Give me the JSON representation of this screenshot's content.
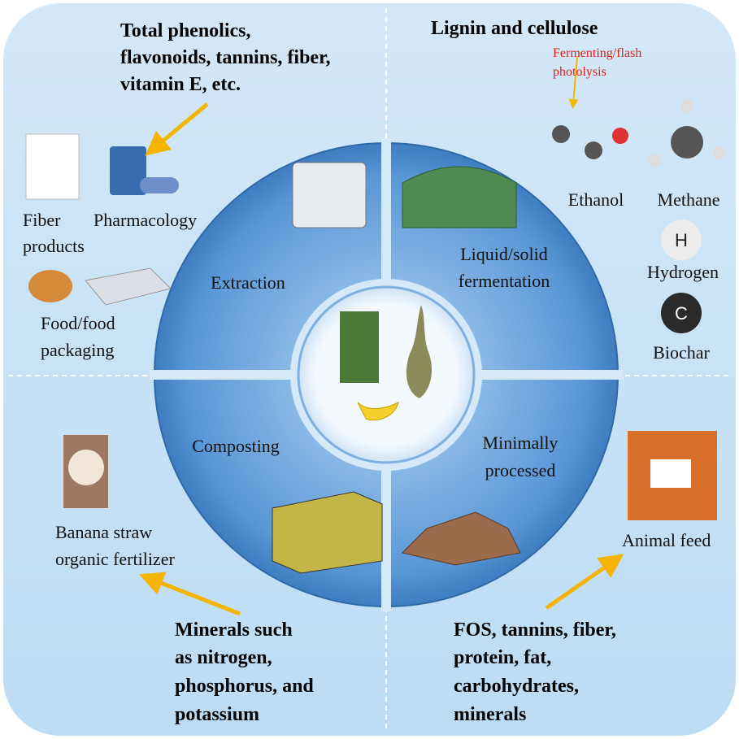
{
  "top_left": {
    "heading": [
      "Total phenolics,",
      "flavonoids, tannins, fiber,",
      "vitamin E, etc."
    ],
    "process": "Extraction",
    "fiber_products": [
      "Fiber",
      "products"
    ],
    "pharmacology": "Pharmacology",
    "food": [
      "Food/food",
      "packaging"
    ]
  },
  "top_right": {
    "heading": "Lignin and cellulose",
    "note": [
      "Fermenting/flash",
      "photolysis"
    ],
    "process": [
      "Liquid/solid",
      "fermentation"
    ],
    "ethanol": "Ethanol",
    "methane": "Methane",
    "hydrogen_icon": "H",
    "hydrogen": "Hydrogen",
    "biochar_icon": "C",
    "biochar": "Biochar"
  },
  "bottom_left": {
    "process": "Composting",
    "product": [
      "Banana straw",
      "organic fertilizer"
    ],
    "heading": [
      "Minerals such",
      "as nitrogen,",
      "phosphorus, and",
      "potassium"
    ]
  },
  "bottom_right": {
    "process": [
      "Minimally",
      "processed"
    ],
    "product": "Animal feed",
    "heading": [
      "FOS, tannins, fiber,",
      "protein, fat,",
      "carbohydrates,",
      "minerals"
    ]
  }
}
